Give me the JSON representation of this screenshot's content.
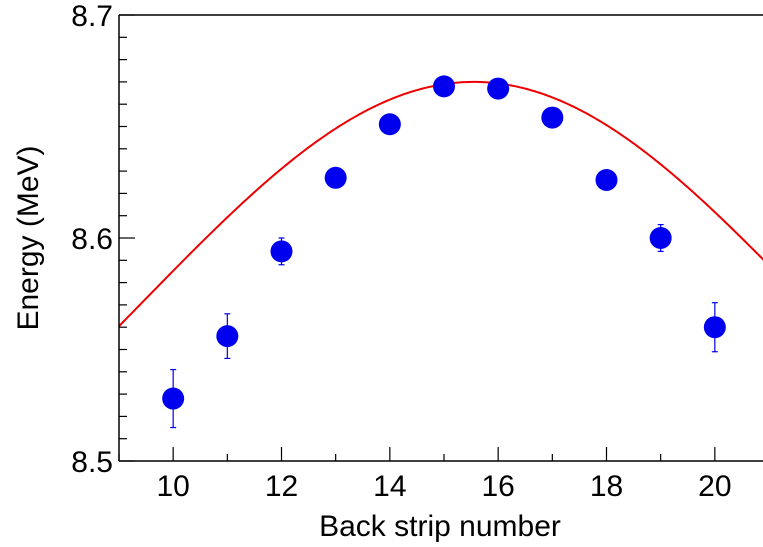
{
  "chart_data": {
    "type": "scatter",
    "title": "",
    "xlabel": "Back strip number",
    "ylabel": "Energy (MeV)",
    "xlim": [
      9.0,
      21.0
    ],
    "ylim": [
      8.5,
      8.7
    ],
    "x_ticks": [
      10,
      12,
      14,
      16,
      18,
      20
    ],
    "x_tick_labels": [
      "10",
      "12",
      "14",
      "16",
      "18",
      "20"
    ],
    "y_ticks": [
      8.5,
      8.6,
      8.7
    ],
    "y_tick_labels": [
      "8.5",
      "8.6",
      "8.7"
    ],
    "grid": false,
    "legend": "none",
    "series": [
      {
        "kind": "points_with_error_bars",
        "color": "#0000ee",
        "x": [
          10,
          11,
          12,
          13,
          14,
          15,
          16,
          17,
          18,
          19,
          20
        ],
        "y": [
          8.528,
          8.556,
          8.594,
          8.627,
          8.651,
          8.668,
          8.667,
          8.654,
          8.626,
          8.6,
          8.56
        ],
        "yerr": [
          0.013,
          0.01,
          0.006,
          0.003,
          0.003,
          0.002,
          0.002,
          0.003,
          0.003,
          0.006,
          0.011
        ]
      },
      {
        "kind": "fit_curve",
        "color": "#ee0000",
        "model": "gaussian",
        "amplitude": 0.25,
        "mean": 15.55,
        "sigma": 6.1,
        "offset": 8.42
      }
    ]
  }
}
